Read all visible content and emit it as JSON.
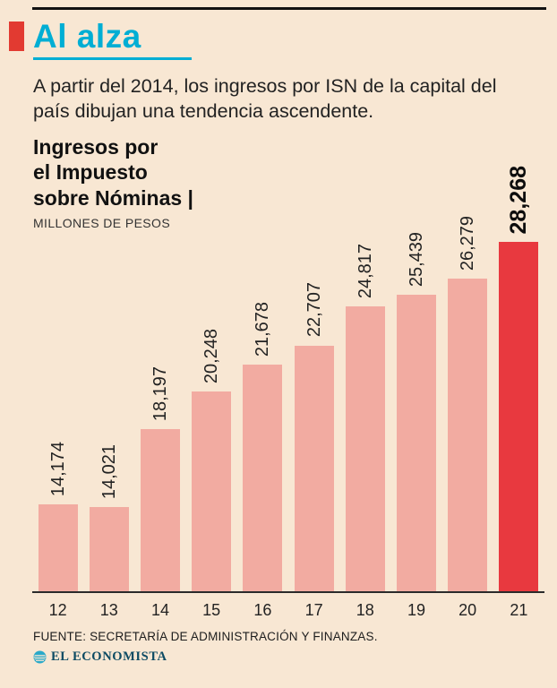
{
  "header": {
    "title": "Al alza",
    "subtitle": "A partir del 2014, los ingresos por ISN de la capital del país dibujan una tendencia ascendente."
  },
  "chart": {
    "heading_lines": {
      "0": "Ingresos por",
      "1": "el Impuesto",
      "2": "sobre Nóminas |"
    },
    "units": "MILLONES DE PESOS"
  },
  "chart_data": {
    "type": "bar",
    "title": "Ingresos por el Impuesto sobre Nóminas",
    "units_label": "MILLONES DE PESOS",
    "categories": [
      "12",
      "13",
      "14",
      "15",
      "16",
      "17",
      "18",
      "19",
      "20",
      "21"
    ],
    "values": [
      14174,
      14021,
      18197,
      20248,
      21678,
      22707,
      24817,
      25439,
      26279,
      28268
    ],
    "value_labels": [
      "14,174",
      "14,021",
      "18,197",
      "20,248",
      "21,678",
      "22,707",
      "24,817",
      "25,439",
      "26,279",
      "28,268"
    ],
    "highlight_index": 9,
    "bar_color": "#f2aba1",
    "highlight_color": "#e8393f",
    "baseline_value": 9500,
    "grid": false,
    "legend": false,
    "value_label_orientation": "vertical"
  },
  "footer": {
    "source": "FUENTE: SECRETARÍA DE ADMINISTRACIÓN Y FINANZAS.",
    "brand": "EL ECONOMISTA"
  },
  "colors": {
    "background": "#f8e7d3",
    "accent_cyan": "#00aed4",
    "accent_red": "#e23a31",
    "bar_pink": "#f2aba1",
    "bar_red": "#e8393f",
    "text": "#222222"
  }
}
